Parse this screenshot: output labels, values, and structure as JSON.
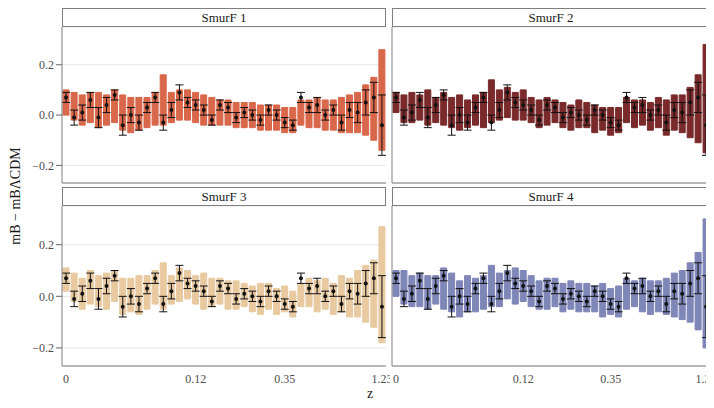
{
  "chart_data": {
    "type": "violin",
    "x_label": "z",
    "y_label": "mB − mBΛCDM",
    "categories": [
      "0",
      null,
      null,
      null,
      null,
      null,
      null,
      null,
      null,
      null,
      null,
      null,
      null,
      null,
      null,
      null,
      "0.12",
      null,
      null,
      null,
      null,
      null,
      null,
      null,
      null,
      null,
      null,
      "0.35",
      null,
      null,
      null,
      null,
      null,
      null,
      null,
      null,
      null,
      null,
      null,
      "1.23"
    ],
    "points": [
      0.07,
      -0.01,
      0.01,
      0.06,
      -0.01,
      0.04,
      0.08,
      -0.04,
      0.0,
      -0.03,
      0.03,
      0.07,
      -0.03,
      0.02,
      0.09,
      0.05,
      0.04,
      0.02,
      -0.02,
      0.04,
      0.03,
      -0.01,
      0.01,
      0.0,
      -0.02,
      0.02,
      0.0,
      -0.03,
      -0.04,
      0.07,
      0.03,
      0.04,
      0.0,
      0.02,
      -0.03,
      0.02,
      0.01,
      0.05,
      0.07,
      -0.04
    ],
    "errors": [
      0.02,
      0.03,
      0.03,
      0.03,
      0.04,
      0.03,
      0.02,
      0.04,
      0.03,
      0.03,
      0.02,
      0.02,
      0.03,
      0.03,
      0.03,
      0.02,
      0.02,
      0.02,
      0.02,
      0.02,
      0.02,
      0.02,
      0.02,
      0.02,
      0.02,
      0.02,
      0.02,
      0.02,
      0.02,
      0.02,
      0.02,
      0.03,
      0.02,
      0.02,
      0.03,
      0.03,
      0.04,
      0.05,
      0.06,
      0.12
    ],
    "ylim": [
      -0.27,
      0.35
    ],
    "yticks": [
      {
        "value": -0.2,
        "label": "−0.2"
      },
      {
        "value": 0,
        "label": "0.0"
      },
      {
        "value": 0.2,
        "label": "0.2"
      }
    ],
    "grid": true,
    "facets": [
      {
        "title": "SmurF 1",
        "color": "#d9674a",
        "low": [
          0.0,
          -0.02,
          -0.04,
          -0.03,
          -0.05,
          -0.04,
          -0.03,
          -0.06,
          -0.07,
          -0.06,
          -0.05,
          -0.04,
          -0.04,
          -0.03,
          -0.02,
          -0.02,
          -0.03,
          -0.04,
          -0.04,
          -0.04,
          -0.04,
          -0.05,
          -0.05,
          -0.05,
          -0.06,
          -0.06,
          -0.06,
          -0.07,
          -0.07,
          -0.04,
          -0.05,
          -0.05,
          -0.06,
          -0.06,
          -0.07,
          -0.07,
          -0.07,
          -0.08,
          -0.1,
          -0.14
        ],
        "high": [
          0.1,
          0.09,
          0.08,
          0.09,
          0.09,
          0.08,
          0.1,
          0.08,
          0.07,
          0.07,
          0.07,
          0.09,
          0.16,
          0.09,
          0.1,
          0.1,
          0.09,
          0.08,
          0.07,
          0.06,
          0.06,
          0.05,
          0.05,
          0.05,
          0.04,
          0.04,
          0.04,
          0.03,
          0.03,
          0.06,
          0.06,
          0.07,
          0.06,
          0.06,
          0.07,
          0.08,
          0.09,
          0.12,
          0.15,
          0.26
        ]
      },
      {
        "title": "SmurF 2",
        "color": "#7a2a2a",
        "low": [
          0.01,
          -0.03,
          -0.03,
          -0.02,
          -0.04,
          -0.03,
          -0.04,
          -0.05,
          -0.06,
          -0.05,
          -0.04,
          -0.05,
          -0.03,
          -0.02,
          -0.01,
          -0.02,
          -0.02,
          -0.03,
          -0.05,
          -0.04,
          -0.03,
          -0.05,
          -0.06,
          -0.05,
          -0.05,
          -0.07,
          -0.06,
          -0.08,
          -0.07,
          -0.03,
          -0.05,
          -0.04,
          -0.06,
          -0.05,
          -0.08,
          -0.06,
          -0.07,
          -0.09,
          -0.11,
          -0.15
        ],
        "high": [
          0.09,
          0.08,
          0.09,
          0.08,
          0.1,
          0.07,
          0.09,
          0.07,
          0.08,
          0.06,
          0.08,
          0.09,
          0.14,
          0.1,
          0.11,
          0.09,
          0.1,
          0.07,
          0.06,
          0.07,
          0.06,
          0.05,
          0.04,
          0.06,
          0.05,
          0.04,
          0.03,
          0.03,
          0.03,
          0.07,
          0.06,
          0.06,
          0.05,
          0.07,
          0.06,
          0.08,
          0.08,
          0.11,
          0.16,
          0.28
        ]
      },
      {
        "title": "SmurF 3",
        "color": "#e8c9a0",
        "low": [
          0.02,
          -0.02,
          -0.05,
          -0.03,
          -0.04,
          -0.05,
          -0.02,
          -0.07,
          -0.06,
          -0.07,
          -0.05,
          -0.03,
          -0.05,
          -0.03,
          -0.02,
          -0.01,
          -0.03,
          -0.05,
          -0.04,
          -0.03,
          -0.05,
          -0.05,
          -0.04,
          -0.06,
          -0.07,
          -0.05,
          -0.07,
          -0.06,
          -0.08,
          -0.04,
          -0.04,
          -0.06,
          -0.05,
          -0.07,
          -0.06,
          -0.08,
          -0.08,
          -0.1,
          -0.12,
          -0.18
        ],
        "high": [
          0.11,
          0.09,
          0.07,
          0.1,
          0.08,
          0.09,
          0.1,
          0.07,
          0.07,
          0.08,
          0.08,
          0.1,
          0.13,
          0.08,
          0.11,
          0.1,
          0.08,
          0.09,
          0.07,
          0.07,
          0.06,
          0.06,
          0.05,
          0.04,
          0.05,
          0.05,
          0.03,
          0.04,
          0.02,
          0.05,
          0.07,
          0.06,
          0.07,
          0.05,
          0.08,
          0.07,
          0.1,
          0.12,
          0.14,
          0.27
        ]
      },
      {
        "title": "SmurF 4",
        "color": "#7f86b8",
        "low": [
          0.0,
          -0.03,
          -0.04,
          -0.04,
          -0.05,
          -0.03,
          -0.05,
          -0.06,
          -0.08,
          -0.06,
          -0.06,
          -0.05,
          -0.04,
          -0.04,
          -0.01,
          -0.03,
          -0.02,
          -0.04,
          -0.05,
          -0.05,
          -0.04,
          -0.06,
          -0.05,
          -0.06,
          -0.06,
          -0.06,
          -0.08,
          -0.07,
          -0.08,
          -0.05,
          -0.04,
          -0.06,
          -0.07,
          -0.06,
          -0.07,
          -0.08,
          -0.09,
          -0.1,
          -0.13,
          -0.2
        ],
        "high": [
          0.1,
          0.1,
          0.08,
          0.09,
          0.08,
          0.08,
          0.11,
          0.09,
          0.06,
          0.08,
          0.07,
          0.08,
          0.12,
          0.09,
          0.1,
          0.11,
          0.1,
          0.08,
          0.06,
          0.07,
          0.07,
          0.05,
          0.06,
          0.05,
          0.05,
          0.04,
          0.05,
          0.03,
          0.04,
          0.07,
          0.06,
          0.07,
          0.06,
          0.06,
          0.07,
          0.09,
          0.1,
          0.13,
          0.17,
          0.3
        ]
      }
    ]
  }
}
